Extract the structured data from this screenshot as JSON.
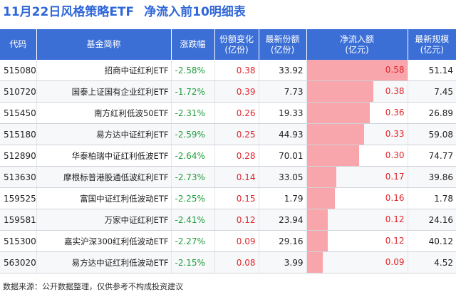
{
  "header": {
    "title": "11月22日风格策略ETF",
    "subtitle": "净流入前10明细表"
  },
  "columns": {
    "code": "代码",
    "name": "基金简称",
    "change": "涨跌幅",
    "share_change": "份额变化\n(亿份)",
    "latest_share": "最新份额\n(亿份)",
    "net_inflow": "净流入额\n(亿元)",
    "scale": "最新规模\n(亿元)"
  },
  "rows": [
    {
      "code": "515080",
      "name": "招商中证红利ETF",
      "change": "-2.58%",
      "share_change": "0.38",
      "latest_share": "33.92",
      "net_inflow": "0.58",
      "net_inflow_value": 0.58,
      "scale": "51.14"
    },
    {
      "code": "510720",
      "name": "国泰上证国有企业红利ETF",
      "change": "-1.72%",
      "share_change": "0.39",
      "latest_share": "7.73",
      "net_inflow": "0.38",
      "net_inflow_value": 0.38,
      "scale": "7.45"
    },
    {
      "code": "515450",
      "name": "南方红利低波50ETF",
      "change": "-2.31%",
      "share_change": "0.26",
      "latest_share": "19.33",
      "net_inflow": "0.36",
      "net_inflow_value": 0.36,
      "scale": "26.89"
    },
    {
      "code": "515180",
      "name": "易方达中证红利ETF",
      "change": "-2.59%",
      "share_change": "0.25",
      "latest_share": "44.93",
      "net_inflow": "0.33",
      "net_inflow_value": 0.33,
      "scale": "59.08"
    },
    {
      "code": "512890",
      "name": "华泰柏瑞中证红利低波ETF",
      "change": "-2.64%",
      "share_change": "0.28",
      "latest_share": "70.01",
      "net_inflow": "0.30",
      "net_inflow_value": 0.3,
      "scale": "74.77"
    },
    {
      "code": "513630",
      "name": "摩根标普港股通低波红利ETF",
      "change": "-2.73%",
      "share_change": "0.14",
      "latest_share": "33.05",
      "net_inflow": "0.17",
      "net_inflow_value": 0.17,
      "scale": "39.86"
    },
    {
      "code": "159525",
      "name": "富国中证红利低波动ETF",
      "change": "-2.25%",
      "share_change": "0.15",
      "latest_share": "1.79",
      "net_inflow": "0.16",
      "net_inflow_value": 0.16,
      "scale": "1.78"
    },
    {
      "code": "159581",
      "name": "万家中证红利ETF",
      "change": "-2.41%",
      "share_change": "0.12",
      "latest_share": "23.94",
      "net_inflow": "0.12",
      "net_inflow_value": 0.12,
      "scale": "24.16"
    },
    {
      "code": "515300",
      "name": "嘉实沪深300红利低波动ETF",
      "change": "-2.27%",
      "share_change": "0.09",
      "latest_share": "29.16",
      "net_inflow": "0.12",
      "net_inflow_value": 0.12,
      "scale": "40.12"
    },
    {
      "code": "563020",
      "name": "易方达中证红利低波动ETF",
      "change": "-2.15%",
      "share_change": "0.08",
      "latest_share": "3.99",
      "net_inflow": "0.09",
      "net_inflow_value": 0.09,
      "scale": "4.52"
    }
  ],
  "bar_max": 0.58,
  "footer": {
    "source": "数据来源：公开数据整理，仅供参考不构成投资建议"
  },
  "colors": {
    "title": "#2f66d8",
    "header_bg": "#3c6fd6",
    "bar": "#f8a6ab",
    "positive": "#e0262b",
    "negative": "#1f9d3d"
  }
}
